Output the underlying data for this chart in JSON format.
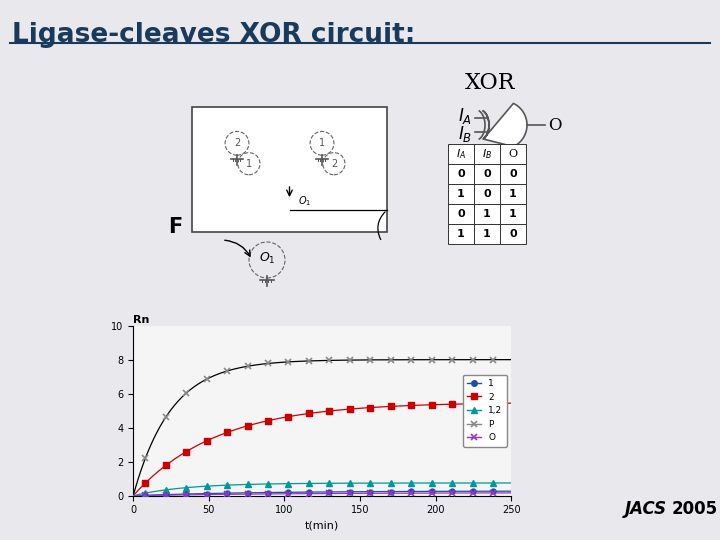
{
  "title": "Ligase-cleaves XOR circuit:",
  "title_color": "#1a3a5c",
  "title_fontsize": 19,
  "bg_color": "#e9e9ed",
  "xor_label": "XOR",
  "truth_table_rows": [
    [
      0,
      0,
      0
    ],
    [
      1,
      0,
      1
    ],
    [
      0,
      1,
      1
    ],
    [
      1,
      1,
      0
    ]
  ],
  "f_label": "F",
  "jacs_italic": "JACS",
  "year_bold": "2005",
  "plot_title": "Rn",
  "plot_xlabel": "t(min)",
  "plot_xlim": [
    0,
    250
  ],
  "plot_ylim": [
    0,
    10
  ],
  "plot_yticks": [
    0,
    2,
    4,
    6,
    8,
    10
  ],
  "plot_xticks": [
    0,
    50,
    100,
    150,
    200,
    250
  ],
  "series_P_color": "#888888",
  "series_2_color": "#cc0000",
  "series_12_color": "#009999",
  "series_1_color": "#1f4e9c",
  "series_O_color": "#9933cc"
}
